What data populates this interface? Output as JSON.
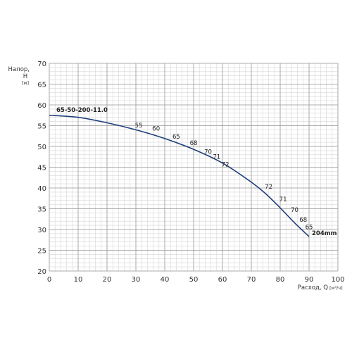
{
  "chart_data": {
    "type": "line",
    "xlabel": "Расход, Q",
    "xunit": "[м³/ч]",
    "ylabel_line1": "Напор,",
    "ylabel_line2": "H",
    "yunit": "[м]",
    "xlim": [
      0,
      100
    ],
    "ylim": [
      20,
      70
    ],
    "x_ticks": [
      0,
      10,
      20,
      30,
      40,
      50,
      60,
      70,
      80,
      90,
      100
    ],
    "y_ticks": [
      20,
      25,
      30,
      35,
      40,
      45,
      50,
      55,
      60,
      65,
      70
    ],
    "grid": true,
    "series": [
      {
        "name": "65-50-200-11.0",
        "end_label": "204mm",
        "color": "#1f3f7a",
        "x": [
          0,
          10,
          20,
          30,
          40,
          50,
          60,
          70,
          75,
          80,
          85,
          90
        ],
        "y": [
          57.5,
          57.0,
          55.7,
          54.0,
          51.9,
          49.3,
          46.0,
          41.4,
          38.6,
          35.2,
          31.6,
          28.3
        ]
      }
    ],
    "efficiency_labels": [
      {
        "text": "55",
        "x": 31,
        "y": 54.6
      },
      {
        "text": "60",
        "x": 37,
        "y": 53.8
      },
      {
        "text": "65",
        "x": 44,
        "y": 51.9
      },
      {
        "text": "68",
        "x": 50,
        "y": 50.3
      },
      {
        "text": "70",
        "x": 55,
        "y": 48.2
      },
      {
        "text": "71",
        "x": 58,
        "y": 47.0
      },
      {
        "text": "72",
        "x": 61,
        "y": 45.2
      },
      {
        "text": "72",
        "x": 76,
        "y": 39.8
      },
      {
        "text": "71",
        "x": 81,
        "y": 36.8
      },
      {
        "text": "70",
        "x": 85,
        "y": 34.2
      },
      {
        "text": "68",
        "x": 88,
        "y": 31.9
      },
      {
        "text": "65",
        "x": 90,
        "y": 30.1
      }
    ]
  }
}
